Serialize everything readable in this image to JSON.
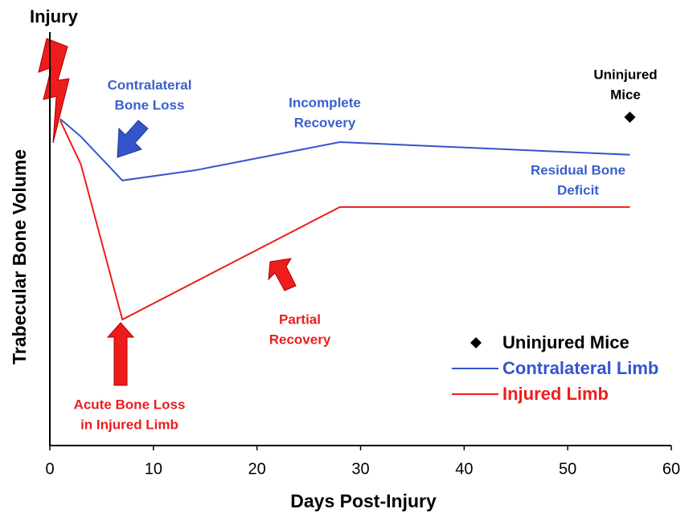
{
  "chart_data": {
    "type": "line",
    "x_label": "Days Post-Injury",
    "y_label": "Trabecular Bone Volume",
    "xlim": [
      0,
      60
    ],
    "xticks": [
      0,
      10,
      20,
      30,
      40,
      50,
      60
    ],
    "ylim": [
      0,
      100
    ],
    "series": [
      {
        "name": "Uninjured Mice",
        "color": "#000000",
        "marker": "diamond",
        "x": [
          56
        ],
        "values": [
          77.9
        ]
      },
      {
        "name": "Contralateral Limb",
        "color": "#3355cc",
        "x": [
          1,
          3,
          7,
          14,
          28,
          56
        ],
        "values": [
          77.5,
          73.3,
          62.9,
          65.3,
          72,
          69
        ]
      },
      {
        "name": "Injured Limb",
        "color": "#ee1c1c",
        "x": [
          1,
          3,
          7,
          28,
          56
        ],
        "values": [
          77.1,
          66.7,
          29.9,
          56.6,
          56.6
        ]
      }
    ],
    "legend": "lower right",
    "annotations": [
      {
        "lines": [
          "Injury"
        ],
        "color": "#000000"
      },
      {
        "lines": [
          "Contralateral",
          "Bone Loss"
        ],
        "color": "#3a5fcd"
      },
      {
        "lines": [
          "Incomplete",
          "Recovery"
        ],
        "color": "#3a5fcd"
      },
      {
        "lines": [
          "Uninjured",
          "Mice"
        ],
        "color": "#000000"
      },
      {
        "lines": [
          "Residual Bone",
          "Deficit"
        ],
        "color": "#3a5fcd"
      },
      {
        "lines": [
          "Partial",
          "Recovery"
        ],
        "color": "#ee1c1c"
      },
      {
        "lines": [
          "Acute Bone Loss",
          "in Injured Limb"
        ],
        "color": "#ee1c1c"
      }
    ]
  }
}
